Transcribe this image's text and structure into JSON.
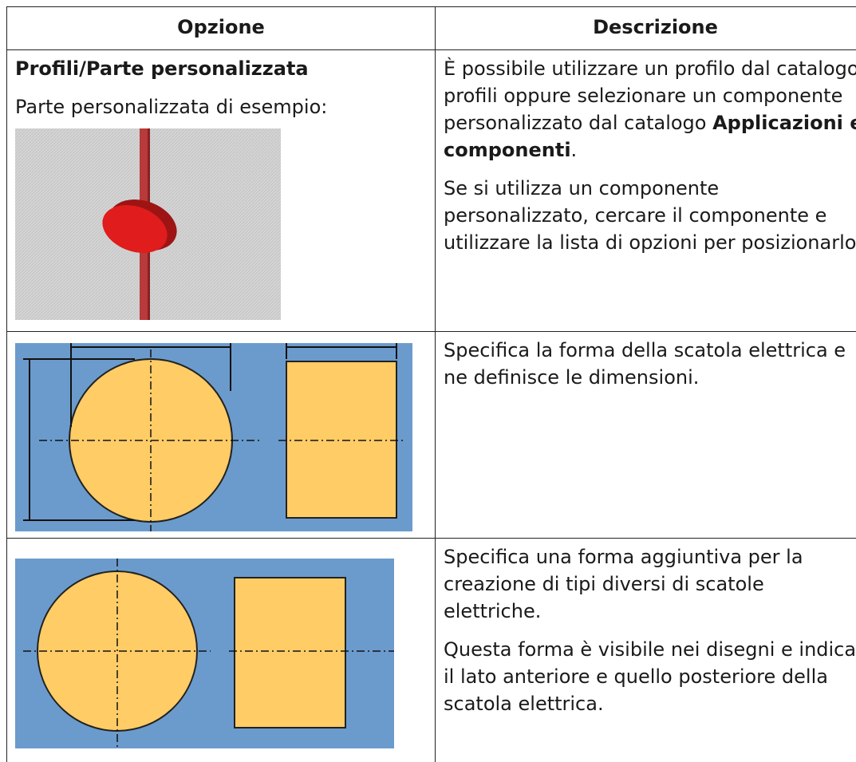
{
  "table": {
    "header": [
      "Opzione",
      "Descrizione"
    ],
    "rows": [
      {
        "option": "Profili/Parte personalizzata",
        "caption": "Parte personalizzata di esempio:",
        "description": [
          [
            "È possibile utilizzare un profilo dal catalogo profili oppure selezionare un componente personalizzato dal catalogo ",
            "Applicazioni e componenti",
            "."
          ],
          [
            "Se si utilizza un componente personalizzato, cercare il componente e utilizzare la lista di opzioni per posizionarlo."
          ]
        ]
      },
      {
        "description": [
          [
            "Specifica la forma della scatola elettrica e ne definisce le dimensioni."
          ]
        ]
      },
      {
        "description": [
          [
            "Specifica una forma aggiuntiva per la creazione di tipi diversi di scatole elettriche."
          ],
          [
            "Questa forma è visibile nei disegni e indica il lato anteriore e quello posteriore della scatola elettrica."
          ]
        ]
      }
    ]
  }
}
